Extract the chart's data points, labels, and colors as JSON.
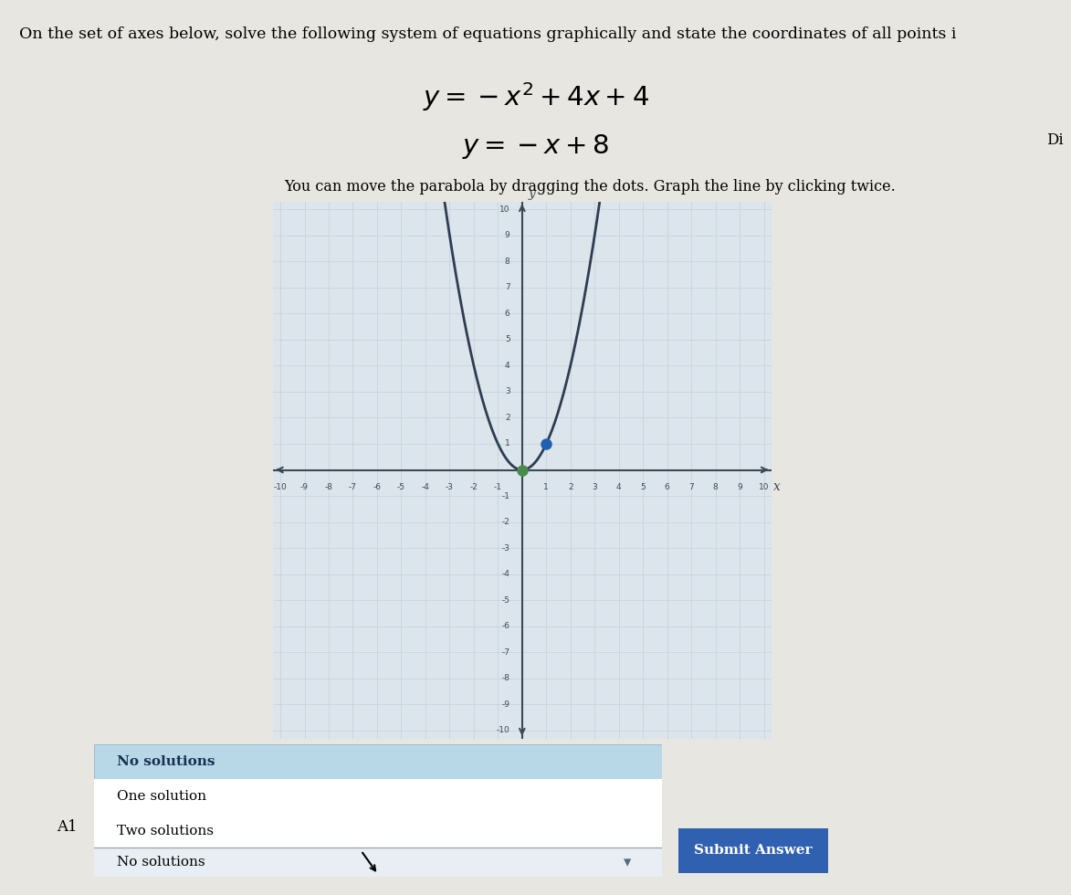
{
  "title_line1": "On the set of axes below, solve the following system of equations graphically and state the coordinates of all points i",
  "eq1_latex": "$y = -x^2 + 4x + 4$",
  "eq2_latex": "$y = -x + 8$",
  "instruction": "You can move the parabola by dragging the dots. Graph the line by clicking twice.",
  "bg_color": "#e8e6e0",
  "plot_bg_color": "#dce4ec",
  "grid_color": "#c0ccd8",
  "axis_color": "#3a4a54",
  "parabola_color": "#2c3e50",
  "green_dot": [
    0,
    0
  ],
  "blue_dot": [
    1,
    1
  ],
  "xmin": -10,
  "xmax": 10,
  "ymin": -10,
  "ymax": 10,
  "options_list": [
    "No solutions",
    "One solution",
    "Two solutions"
  ],
  "selected_row_color": "#b8d8e8",
  "unselected_row_color": "#f0f0f0",
  "dropdown_label": "No solutions",
  "button_color": "#3060b0",
  "button_text": "Submit Answer",
  "answer_label": "A1",
  "di_label": "Di"
}
